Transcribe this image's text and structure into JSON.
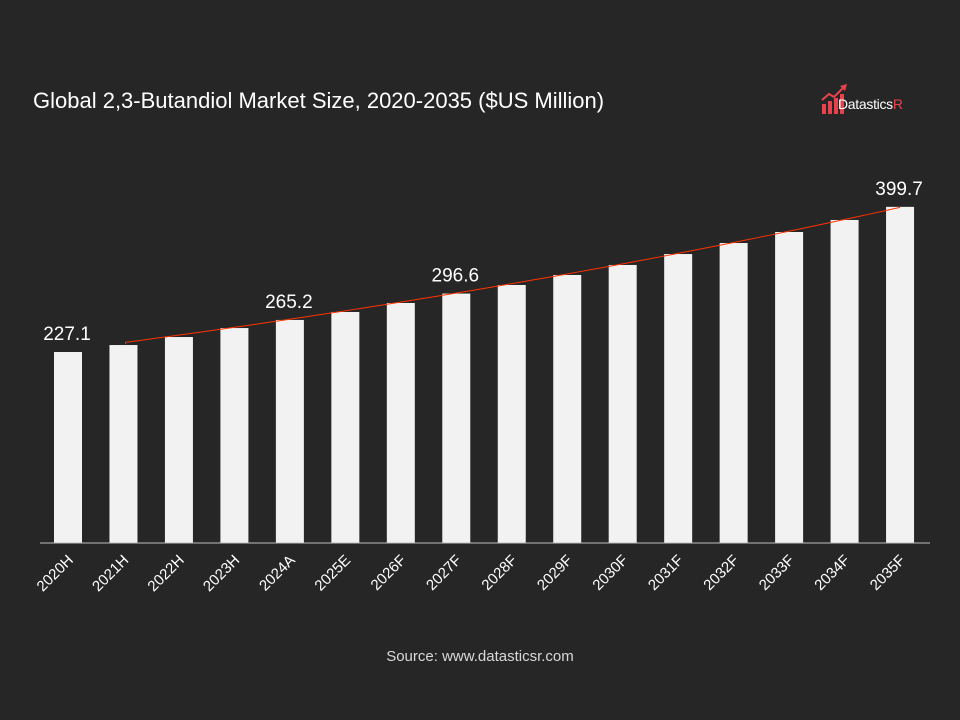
{
  "brand": {
    "name": "DatasticsR",
    "name_main": "Datastics",
    "name_accent": "R",
    "accent_color": "#e8434d"
  },
  "source": "Source: www.datasticsr.com",
  "chart_data": {
    "type": "bar",
    "title": "Global 2,3-Butandiol Market Size, 2020-2035 ($US Million)",
    "categories": [
      "2020H",
      "2021H",
      "2022H",
      "2023H",
      "2024A",
      "2025E",
      "2026F",
      "2027F",
      "2028F",
      "2029F",
      "2030F",
      "2031F",
      "2032F",
      "2033F",
      "2034F",
      "2035F"
    ],
    "values": [
      227.1,
      235.4,
      244.9,
      255.6,
      265.2,
      274.7,
      285.4,
      296.6,
      306.8,
      318.7,
      330.6,
      343.6,
      356.7,
      369.8,
      384.1,
      399.7
    ],
    "data_labels": {
      "0": "227.1",
      "4": "265.2",
      "7": "296.6",
      "15": "399.7"
    },
    "ylim": [
      0,
      420
    ],
    "grid": false,
    "trendline": {
      "type": "exponential",
      "from": "2021H",
      "to": "2035F",
      "color": "#ff3300"
    },
    "bar_color": "#f2f2f2",
    "background": "#262626",
    "xlabel": "",
    "ylabel": ""
  }
}
